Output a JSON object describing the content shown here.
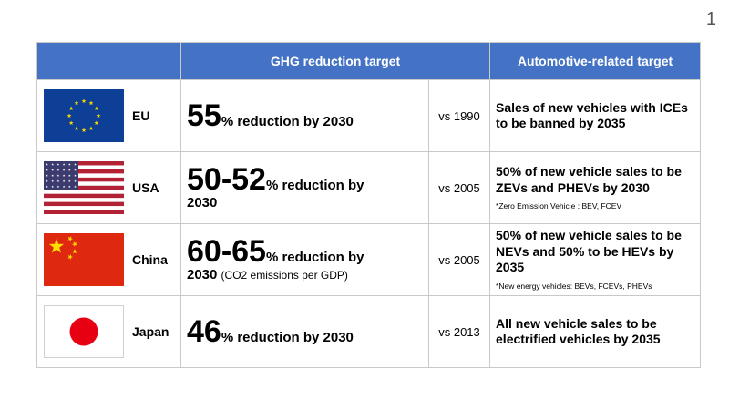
{
  "page_number": "1",
  "header": {
    "blank": "",
    "ghg": "GHG reduction target",
    "auto": "Automotive-related target"
  },
  "rows": [
    {
      "flag_icon": "eu-flag-icon",
      "country": "EU",
      "big": "55",
      "rest": "% reduction by 2030",
      "line2": "",
      "sub": "",
      "vs": "vs 1990",
      "auto": "Sales of new vehicles with ICEs to be banned by 2035",
      "note": ""
    },
    {
      "flag_icon": "usa-flag-icon",
      "country": "USA",
      "big": "50-52",
      "rest": "% reduction by",
      "line2": "2030",
      "sub": "",
      "vs": "vs 2005",
      "auto": "50% of new vehicle sales to be ZEVs and PHEVs by 2030",
      "note": "*Zero Emission Vehicle : BEV, FCEV"
    },
    {
      "flag_icon": "china-flag-icon",
      "country": "China",
      "big": "60-65",
      "rest": "% reduction by",
      "line2": "2030",
      "sub": "(CO2 emissions per GDP)",
      "vs": "vs 2005",
      "auto": "50% of new vehicle sales to be NEVs and 50% to be HEVs by 2035",
      "note": "*New energy vehicles: BEVs, FCEVs, PHEVs"
    },
    {
      "flag_icon": "japan-flag-icon",
      "country": "Japan",
      "big": "46",
      "rest": "% reduction by 2030",
      "line2": "",
      "sub": "",
      "vs": "vs 2013",
      "auto": "All new vehicle sales to be electrified vehicles by 2035",
      "note": ""
    }
  ],
  "colors": {
    "header_bg": "#4472c4",
    "header_text": "#ffffff",
    "border": "#c9c9c9"
  }
}
